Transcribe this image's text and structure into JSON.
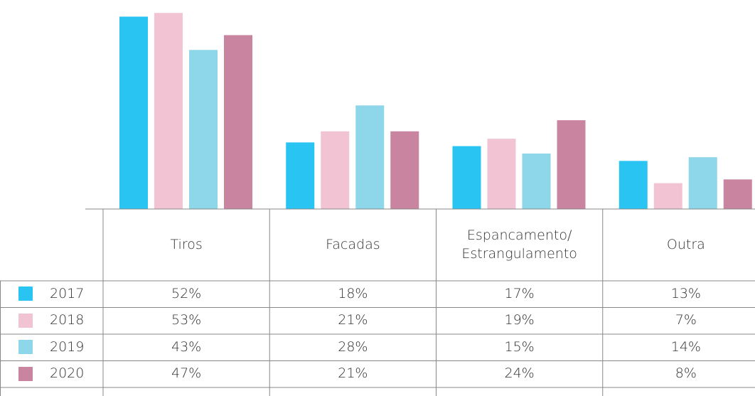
{
  "chart_data": {
    "type": "bar",
    "categories": [
      "Tiros",
      "Facadas",
      "Espancamento/\nEstrangulamento",
      "Outra"
    ],
    "series": [
      {
        "name": "2017",
        "color": "#29c4f2",
        "values": [
          52,
          18,
          17,
          13
        ],
        "value_labels": [
          "52%",
          "18%",
          "17%",
          "13%"
        ]
      },
      {
        "name": "2018",
        "color": "#f2c4d3",
        "values": [
          53,
          21,
          19,
          7
        ],
        "value_labels": [
          "53%",
          "21%",
          "19%",
          "7%"
        ]
      },
      {
        "name": "2019",
        "color": "#8ed6ea",
        "values": [
          43,
          28,
          15,
          14
        ],
        "value_labels": [
          "43%",
          "28%",
          "15%",
          "14%"
        ]
      },
      {
        "name": "2020",
        "color": "#c984a0",
        "values": [
          47,
          21,
          24,
          8
        ],
        "value_labels": [
          "47%",
          "21%",
          "24%",
          "8%"
        ]
      }
    ],
    "ylim": [
      0,
      54
    ]
  }
}
